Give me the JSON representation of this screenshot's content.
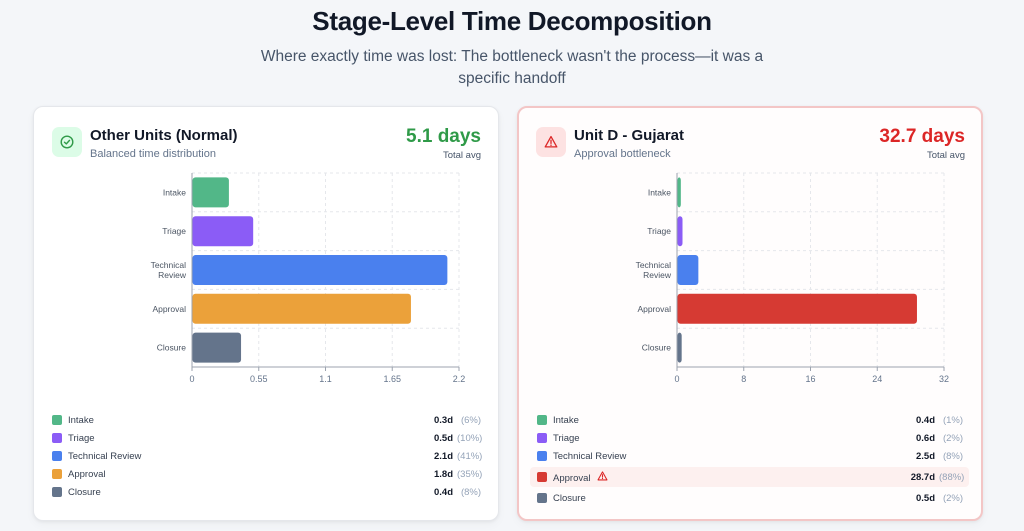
{
  "title": "Stage-Level Time Decomposition",
  "subtitle": "Where exactly time was lost: The bottleneck wasn't the process—it was a specific handoff",
  "colors": {
    "intake": "#52b788",
    "triage": "#8b5cf6",
    "technical_review": "#4a80ee",
    "approval_normal": "#eba13a",
    "approval_bottleneck": "#d63a33",
    "closure": "#64748b",
    "good": "#2f9a48",
    "bad": "#dc2626"
  },
  "cards": [
    {
      "title": "Other Units (Normal)",
      "subtitle": "Balanced time distribution",
      "total": "5.1 days",
      "total_label": "Total avg",
      "icon": "check-circle-icon",
      "legend": [
        {
          "label": "Intake",
          "value": "0.3d",
          "pct": "(6%)"
        },
        {
          "label": "Triage",
          "value": "0.5d",
          "pct": "(10%)"
        },
        {
          "label": "Technical Review",
          "value": "2.1d",
          "pct": "(41%)"
        },
        {
          "label": "Approval",
          "value": "1.8d",
          "pct": "(35%)"
        },
        {
          "label": "Closure",
          "value": "0.4d",
          "pct": "(8%)"
        }
      ]
    },
    {
      "title": "Unit D - Gujarat",
      "subtitle": "Approval bottleneck",
      "total": "32.7 days",
      "total_label": "Total avg",
      "icon": "warning-triangle-icon",
      "legend": [
        {
          "label": "Intake",
          "value": "0.4d",
          "pct": "(1%)"
        },
        {
          "label": "Triage",
          "value": "0.6d",
          "pct": "(2%)"
        },
        {
          "label": "Technical Review",
          "value": "2.5d",
          "pct": "(8%)"
        },
        {
          "label": "Approval",
          "value": "28.7d",
          "pct": "(88%)",
          "highlight": true,
          "warn_icon": "warning-triangle-icon"
        },
        {
          "label": "Closure",
          "value": "0.5d",
          "pct": "(2%)"
        }
      ]
    }
  ],
  "chart_data": [
    {
      "type": "bar",
      "orientation": "horizontal",
      "categories": [
        "Intake",
        "Triage",
        "Technical Review",
        "Approval",
        "Closure"
      ],
      "values": [
        0.3,
        0.5,
        2.1,
        1.8,
        0.4
      ],
      "xlim": [
        0,
        2.2
      ],
      "xticks": [
        "0",
        "0.55",
        "1.1",
        "1.65",
        "2.2"
      ],
      "xtick_values": [
        0,
        0.55,
        1.1,
        1.65,
        2.2
      ],
      "grid": true,
      "bar_colors": [
        "#52b788",
        "#8b5cf6",
        "#4a80ee",
        "#eba13a",
        "#64748b"
      ]
    },
    {
      "type": "bar",
      "orientation": "horizontal",
      "categories": [
        "Intake",
        "Triage",
        "Technical Review",
        "Approval",
        "Closure"
      ],
      "values": [
        0.4,
        0.6,
        2.5,
        28.7,
        0.5
      ],
      "xlim": [
        0,
        32
      ],
      "xticks": [
        "0",
        "8",
        "16",
        "24",
        "32"
      ],
      "xtick_values": [
        0,
        8,
        16,
        24,
        32
      ],
      "grid": true,
      "bar_colors": [
        "#52b788",
        "#8b5cf6",
        "#4a80ee",
        "#d63a33",
        "#64748b"
      ]
    }
  ]
}
